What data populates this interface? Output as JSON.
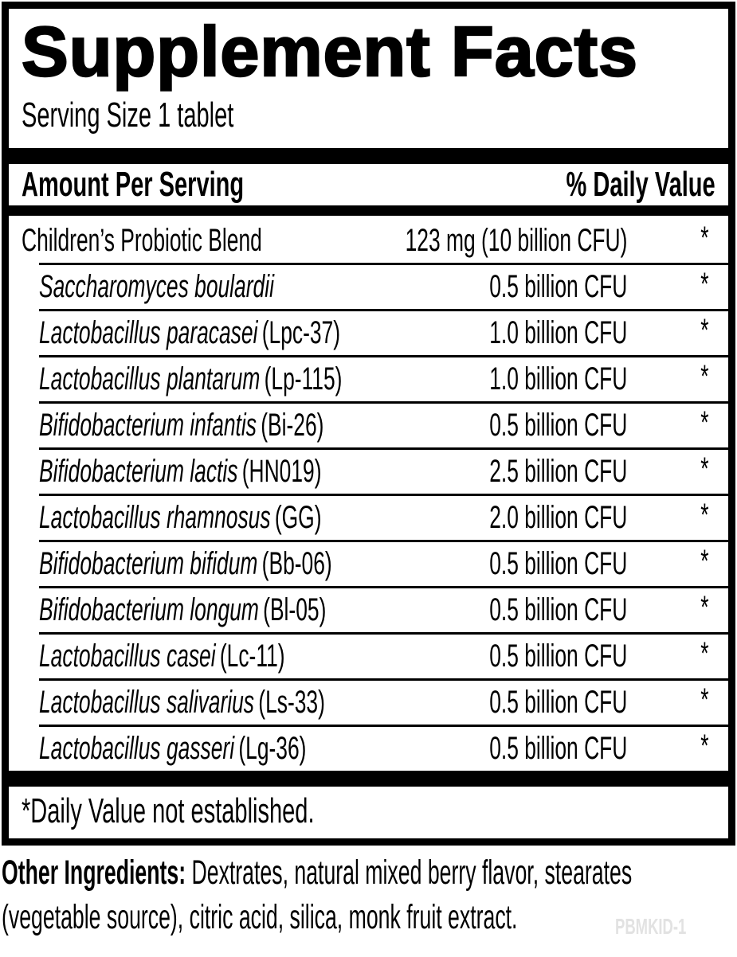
{
  "label": {
    "title": "Supplement Facts",
    "serving_size": "Serving Size 1 tablet",
    "header": {
      "amount": "Amount Per Serving",
      "daily_value": "% Daily Value"
    },
    "blend": {
      "name": "Children’s Probiotic Blend",
      "amount": "123 mg (10 billion CFU)",
      "dv": "*"
    },
    "ingredients": [
      {
        "species": "Saccharomyces boulardii",
        "strain": "",
        "amount": "0.5 billion CFU",
        "dv": "*"
      },
      {
        "species": "Lactobacillus paracasei",
        "strain": "(Lpc-37)",
        "amount": "1.0 billion CFU",
        "dv": "*"
      },
      {
        "species": "Lactobacillus plantarum",
        "strain": "(Lp-115)",
        "amount": "1.0 billion CFU",
        "dv": "*"
      },
      {
        "species": "Bifidobacterium infantis",
        "strain": "(Bi-26)",
        "amount": "0.5 billion CFU",
        "dv": "*"
      },
      {
        "species": "Bifidobacterium lactis",
        "strain": "(HN019)",
        "amount": "2.5 billion CFU",
        "dv": "*"
      },
      {
        "species": "Lactobacillus rhamnosus",
        "strain": "(GG)",
        "amount": "2.0 billion CFU",
        "dv": "*"
      },
      {
        "species": "Bifidobacterium bifidum",
        "strain": "(Bb-06)",
        "amount": "0.5 billion CFU",
        "dv": "*"
      },
      {
        "species": "Bifidobacterium longum",
        "strain": "(Bl-05)",
        "amount": "0.5 billion CFU",
        "dv": "*"
      },
      {
        "species": "Lactobacillus casei",
        "strain": "(Lc-11)",
        "amount": "0.5 billion CFU",
        "dv": "*"
      },
      {
        "species": "Lactobacillus salivarius",
        "strain": "(Ls-33)",
        "amount": "0.5 billion CFU",
        "dv": "*"
      },
      {
        "species": "Lactobacillus gasseri",
        "strain": "(Lg-36)",
        "amount": "0.5 billion CFU",
        "dv": "*"
      }
    ],
    "footnote": "*Daily Value not established."
  },
  "other_ingredients": {
    "label": "Other Ingredients:",
    "line1_rest": " Dextrates, natural mixed berry flavor, stearates",
    "line2": "(vegetable source), citric acid, silica, monk fruit extract."
  },
  "footer_code": "PBMKID-1",
  "colors": {
    "ink": "#000000",
    "paper": "#ffffff",
    "code_gray": "#e2e2e2"
  }
}
